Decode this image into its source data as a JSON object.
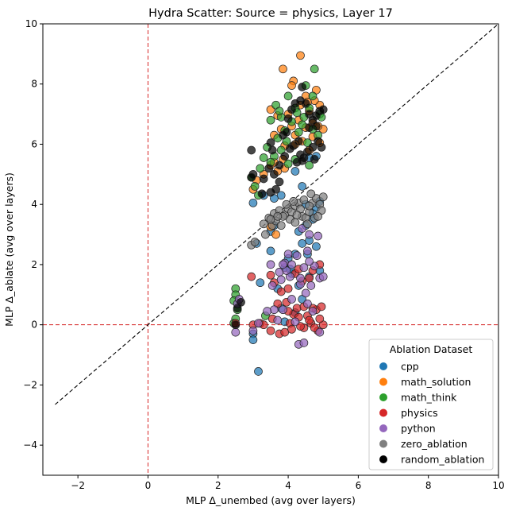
{
  "chart_data": {
    "type": "scatter",
    "title": "Hydra Scatter: Source = physics, Layer 17",
    "xlabel": "MLP Δ_unembed (avg over layers)",
    "ylabel": "MLP Δ_ablate (avg over layers)",
    "xlim": [
      -3,
      10
    ],
    "ylim": [
      -5,
      10
    ],
    "xticks": [
      -2,
      0,
      2,
      4,
      6,
      8,
      10
    ],
    "yticks": [
      -4,
      -2,
      0,
      2,
      4,
      6,
      8,
      10
    ],
    "grid": false,
    "reference_lines": {
      "diagonal": {
        "from": [
          -2.65,
          -2.65
        ],
        "to": [
          10,
          10
        ],
        "color": "#000000",
        "style": "dashed"
      },
      "vertical_zero": {
        "x": 0,
        "color": "#d62728",
        "style": "dashed"
      },
      "horizontal_zero": {
        "y": 0,
        "color": "#d62728",
        "style": "dashed"
      }
    },
    "legend": {
      "title": "Ablation Dataset",
      "placement": "bottom-right"
    },
    "series": [
      {
        "name": "cpp",
        "color": "#1f77b4",
        "points": [
          [
            3.0,
            4.05
          ],
          [
            3.1,
            2.7
          ],
          [
            3.5,
            3.1
          ],
          [
            3.6,
            3.3
          ],
          [
            3.8,
            4.3
          ],
          [
            4.3,
            3.1
          ],
          [
            4.6,
            2.8
          ],
          [
            4.4,
            4.6
          ],
          [
            4.5,
            4.0
          ],
          [
            4.7,
            3.7
          ],
          [
            4.8,
            3.9
          ],
          [
            4.9,
            4.1
          ],
          [
            4.2,
            2.35
          ],
          [
            4.0,
            2.2
          ],
          [
            3.9,
            1.9
          ],
          [
            4.6,
            1.6
          ],
          [
            4.1,
            1.7
          ],
          [
            4.9,
            1.8
          ],
          [
            4.3,
            1.3
          ],
          [
            3.7,
            1.2
          ],
          [
            3.2,
            1.4
          ],
          [
            3.0,
            -0.3
          ],
          [
            3.0,
            -0.5
          ],
          [
            3.15,
            -1.55
          ],
          [
            3.5,
            2.45
          ],
          [
            3.3,
            4.3
          ],
          [
            4.5,
            3.3
          ],
          [
            4.7,
            3.5
          ],
          [
            3.8,
            0.55
          ],
          [
            4.4,
            0.85
          ],
          [
            4.2,
            0.4
          ],
          [
            3.9,
            0.1
          ],
          [
            4.05,
            1.85
          ],
          [
            4.55,
            2.35
          ],
          [
            4.4,
            2.7
          ],
          [
            4.8,
            2.6
          ],
          [
            4.6,
            5.55
          ],
          [
            4.8,
            5.6
          ],
          [
            4.2,
            5.1
          ],
          [
            3.6,
            4.2
          ]
        ]
      },
      {
        "name": "math_solution",
        "color": "#ff7f0e",
        "points": [
          [
            3.85,
            8.5
          ],
          [
            4.35,
            8.95
          ],
          [
            4.15,
            8.1
          ],
          [
            4.5,
            7.6
          ],
          [
            4.8,
            7.8
          ],
          [
            4.9,
            7.3
          ],
          [
            4.6,
            7.1
          ],
          [
            3.5,
            7.15
          ],
          [
            3.7,
            6.95
          ],
          [
            4.0,
            7.0
          ],
          [
            4.3,
            6.8
          ],
          [
            4.5,
            6.55
          ],
          [
            4.7,
            6.7
          ],
          [
            4.1,
            6.6
          ],
          [
            3.8,
            6.5
          ],
          [
            3.6,
            6.3
          ],
          [
            3.9,
            5.95
          ],
          [
            4.2,
            6.3
          ],
          [
            4.4,
            6.1
          ],
          [
            4.7,
            6.25
          ],
          [
            5.0,
            6.5
          ],
          [
            4.9,
            6.05
          ],
          [
            3.5,
            5.3
          ],
          [
            3.7,
            5.1
          ],
          [
            3.85,
            5.5
          ],
          [
            4.6,
            5.8
          ],
          [
            3.0,
            4.5
          ],
          [
            3.1,
            4.8
          ],
          [
            3.6,
            5.4
          ],
          [
            4.1,
            7.95
          ],
          [
            4.35,
            7.3
          ],
          [
            4.75,
            7.45
          ],
          [
            3.3,
            5.0
          ],
          [
            3.9,
            5.2
          ],
          [
            4.85,
            6.6
          ],
          [
            4.2,
            6.0
          ],
          [
            3.5,
            3.25
          ],
          [
            3.65,
            3.0
          ],
          [
            4.55,
            7.4
          ]
        ]
      },
      {
        "name": "math_think",
        "color": "#2ca02c",
        "points": [
          [
            4.75,
            8.5
          ],
          [
            4.5,
            7.95
          ],
          [
            4.0,
            7.6
          ],
          [
            3.65,
            7.3
          ],
          [
            4.2,
            7.2
          ],
          [
            4.6,
            7.2
          ],
          [
            4.9,
            7.0
          ],
          [
            3.8,
            6.9
          ],
          [
            3.5,
            6.8
          ],
          [
            4.1,
            6.75
          ],
          [
            4.4,
            6.65
          ],
          [
            4.7,
            6.5
          ],
          [
            3.9,
            6.45
          ],
          [
            4.3,
            6.4
          ],
          [
            3.7,
            6.2
          ],
          [
            4.55,
            6.05
          ],
          [
            4.85,
            6.3
          ],
          [
            3.4,
            5.9
          ],
          [
            3.6,
            5.6
          ],
          [
            3.8,
            5.8
          ],
          [
            4.0,
            5.35
          ],
          [
            3.5,
            5.4
          ],
          [
            3.2,
            5.2
          ],
          [
            3.05,
            4.6
          ],
          [
            2.95,
            4.9
          ],
          [
            3.15,
            4.3
          ],
          [
            3.3,
            5.55
          ],
          [
            4.45,
            6.9
          ],
          [
            4.25,
            7.05
          ],
          [
            4.7,
            7.6
          ],
          [
            4.2,
            5.5
          ],
          [
            4.6,
            5.3
          ],
          [
            2.5,
            1.2
          ],
          [
            2.5,
            1.0
          ],
          [
            2.45,
            0.8
          ],
          [
            2.55,
            0.5
          ],
          [
            2.5,
            0.2
          ],
          [
            2.45,
            0.05
          ],
          [
            3.35,
            0.3
          ],
          [
            3.95,
            6.1
          ],
          [
            4.95,
            6.9
          ],
          [
            3.75,
            7.1
          ]
        ]
      },
      {
        "name": "physics",
        "color": "#d62728",
        "points": [
          [
            2.95,
            1.6
          ],
          [
            3.5,
            1.65
          ],
          [
            3.6,
            1.4
          ],
          [
            3.8,
            1.1
          ],
          [
            4.0,
            1.2
          ],
          [
            4.4,
            1.45
          ],
          [
            4.2,
            1.7
          ],
          [
            4.7,
            1.8
          ],
          [
            4.9,
            2.0
          ],
          [
            4.6,
            1.55
          ],
          [
            3.0,
            0.0
          ],
          [
            3.2,
            0.05
          ],
          [
            3.5,
            -0.2
          ],
          [
            3.55,
            0.2
          ],
          [
            3.75,
            -0.3
          ],
          [
            3.9,
            -0.25
          ],
          [
            4.05,
            0.05
          ],
          [
            4.15,
            0.35
          ],
          [
            4.3,
            0.25
          ],
          [
            4.45,
            -0.1
          ],
          [
            4.55,
            0.3
          ],
          [
            4.65,
            0.05
          ],
          [
            4.8,
            0.5
          ],
          [
            4.95,
            0.6
          ],
          [
            5.0,
            0.0
          ],
          [
            4.85,
            -0.2
          ],
          [
            4.7,
            0.55
          ],
          [
            4.25,
            0.55
          ],
          [
            4.45,
            0.6
          ],
          [
            3.95,
            0.75
          ],
          [
            3.7,
            0.7
          ],
          [
            4.35,
            -0.05
          ],
          [
            3.3,
            0.0
          ],
          [
            4.1,
            -0.15
          ],
          [
            4.6,
            0.15
          ],
          [
            2.5,
            0.05
          ],
          [
            4.9,
            0.2
          ],
          [
            4.75,
            -0.1
          ],
          [
            4.0,
            0.45
          ],
          [
            4.3,
            1.85
          ]
        ]
      },
      {
        "name": "python",
        "color": "#9467bd",
        "points": [
          [
            3.5,
            2.0
          ],
          [
            3.75,
            1.75
          ],
          [
            3.9,
            2.05
          ],
          [
            4.1,
            2.0
          ],
          [
            4.25,
            2.3
          ],
          [
            4.55,
            2.45
          ],
          [
            4.85,
            2.95
          ],
          [
            4.4,
            3.2
          ],
          [
            4.6,
            3.0
          ],
          [
            3.55,
            1.3
          ],
          [
            3.8,
            1.5
          ],
          [
            4.05,
            1.6
          ],
          [
            4.35,
            1.35
          ],
          [
            4.65,
            1.3
          ],
          [
            4.9,
            1.55
          ],
          [
            5.0,
            1.6
          ],
          [
            4.5,
            1.05
          ],
          [
            4.1,
            0.85
          ],
          [
            3.85,
            0.5
          ],
          [
            3.6,
            0.5
          ],
          [
            3.4,
            0.45
          ],
          [
            3.15,
            0.05
          ],
          [
            3.0,
            -0.2
          ],
          [
            2.5,
            -0.25
          ],
          [
            2.55,
            0.7
          ],
          [
            2.6,
            0.85
          ],
          [
            4.3,
            -0.65
          ],
          [
            4.45,
            -0.6
          ],
          [
            4.9,
            -0.25
          ],
          [
            4.7,
            0.45
          ],
          [
            3.7,
            0.15
          ],
          [
            4.2,
            0.1
          ],
          [
            4.55,
            0.7
          ],
          [
            4.75,
            1.95
          ],
          [
            4.35,
            1.55
          ],
          [
            3.95,
            1.8
          ],
          [
            3.85,
            2.0
          ],
          [
            4.0,
            2.35
          ],
          [
            4.45,
            1.9
          ],
          [
            4.6,
            2.1
          ]
        ]
      },
      {
        "name": "zero_ablation",
        "color": "#7f7f7f",
        "points": [
          [
            2.95,
            2.65
          ],
          [
            3.05,
            2.75
          ],
          [
            3.35,
            3.0
          ],
          [
            3.55,
            3.3
          ],
          [
            3.45,
            3.55
          ],
          [
            3.6,
            3.7
          ],
          [
            3.75,
            3.8
          ],
          [
            3.9,
            3.65
          ],
          [
            4.0,
            3.85
          ],
          [
            4.1,
            3.75
          ],
          [
            4.2,
            3.95
          ],
          [
            4.3,
            4.05
          ],
          [
            4.35,
            3.85
          ],
          [
            4.4,
            3.6
          ],
          [
            4.5,
            3.55
          ],
          [
            4.6,
            3.75
          ],
          [
            4.7,
            4.05
          ],
          [
            4.8,
            4.2
          ],
          [
            4.9,
            4.0
          ],
          [
            5.0,
            4.25
          ],
          [
            4.95,
            3.8
          ],
          [
            4.75,
            3.55
          ],
          [
            4.55,
            3.35
          ],
          [
            4.25,
            3.65
          ],
          [
            4.05,
            3.5
          ],
          [
            3.85,
            3.6
          ],
          [
            3.65,
            3.45
          ],
          [
            3.5,
            3.5
          ],
          [
            3.3,
            3.35
          ],
          [
            3.7,
            3.6
          ],
          [
            4.45,
            4.15
          ],
          [
            4.15,
            4.1
          ],
          [
            3.95,
            4.0
          ],
          [
            4.65,
            4.35
          ],
          [
            4.85,
            3.6
          ],
          [
            4.2,
            3.4
          ],
          [
            3.8,
            3.3
          ],
          [
            4.6,
            3.95
          ]
        ]
      },
      {
        "name": "random_ablation",
        "color": "#000000",
        "points": [
          [
            2.95,
            5.8
          ],
          [
            3.5,
            6.05
          ],
          [
            3.55,
            5.8
          ],
          [
            3.85,
            6.3
          ],
          [
            3.95,
            6.4
          ],
          [
            4.0,
            6.85
          ],
          [
            4.1,
            7.15
          ],
          [
            4.2,
            7.35
          ],
          [
            4.35,
            7.45
          ],
          [
            4.5,
            7.35
          ],
          [
            4.6,
            7.0
          ],
          [
            4.7,
            6.8
          ],
          [
            4.8,
            6.6
          ],
          [
            4.9,
            7.1
          ],
          [
            5.0,
            7.15
          ],
          [
            4.85,
            6.1
          ],
          [
            4.7,
            5.9
          ],
          [
            4.55,
            5.75
          ],
          [
            4.45,
            5.55
          ],
          [
            4.35,
            5.65
          ],
          [
            4.25,
            5.4
          ],
          [
            4.15,
            5.95
          ],
          [
            4.05,
            5.85
          ],
          [
            3.9,
            5.6
          ],
          [
            3.75,
            5.3
          ],
          [
            3.6,
            5.0
          ],
          [
            3.45,
            5.2
          ],
          [
            3.3,
            4.85
          ],
          [
            3.0,
            5.0
          ],
          [
            2.95,
            4.9
          ],
          [
            3.5,
            4.4
          ],
          [
            3.25,
            4.35
          ],
          [
            3.75,
            4.75
          ],
          [
            3.65,
            4.5
          ],
          [
            4.4,
            5.45
          ],
          [
            4.95,
            5.9
          ],
          [
            4.75,
            5.5
          ],
          [
            4.6,
            6.55
          ],
          [
            4.3,
            6.1
          ],
          [
            2.55,
            0.55
          ],
          [
            2.65,
            0.75
          ],
          [
            2.5,
            0.0
          ],
          [
            4.4,
            7.9
          ],
          [
            4.8,
            6.95
          ]
        ]
      }
    ]
  }
}
